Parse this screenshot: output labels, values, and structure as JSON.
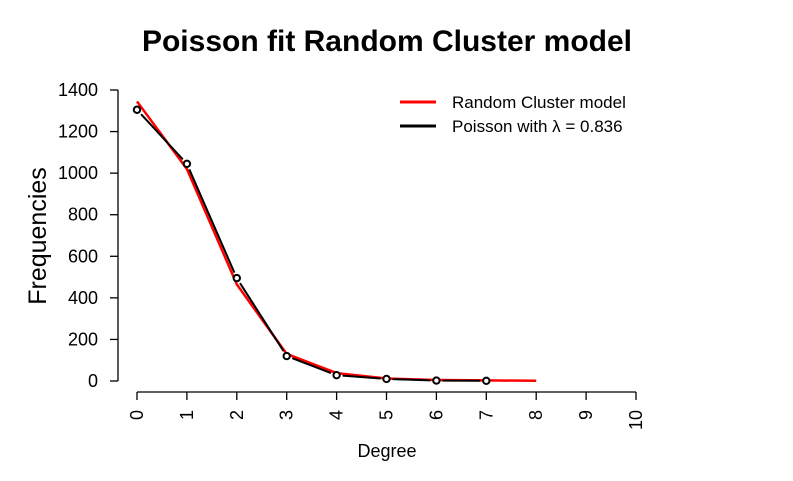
{
  "chart_data": {
    "type": "line",
    "title": "Poisson fit Random Cluster model",
    "xlabel": "Degree",
    "ylabel": "Frequencies",
    "xlim": [
      0,
      10
    ],
    "ylim": [
      0,
      1400
    ],
    "x_ticks": [
      "0",
      "1",
      "2",
      "3",
      "4",
      "5",
      "6",
      "7",
      "8",
      "9",
      "10"
    ],
    "y_ticks": [
      "0",
      "200",
      "400",
      "600",
      "800",
      "1000",
      "1200",
      "1400"
    ],
    "grid": false,
    "legend_position": "top-right",
    "series": [
      {
        "name": "Random Cluster model",
        "color": "#ff0000",
        "style": "line",
        "x": [
          0,
          1,
          2,
          3,
          4,
          5,
          6,
          7,
          8
        ],
        "values": [
          1345,
          1020,
          465,
          130,
          38,
          12,
          5,
          3,
          1
        ]
      },
      {
        "name": "Poisson with λ = 0.836",
        "color": "#000000",
        "style": "line+points",
        "x": [
          0,
          1,
          2,
          3,
          4,
          5,
          6,
          7
        ],
        "values": [
          1305,
          1045,
          495,
          120,
          28,
          10,
          2,
          1
        ]
      }
    ]
  }
}
